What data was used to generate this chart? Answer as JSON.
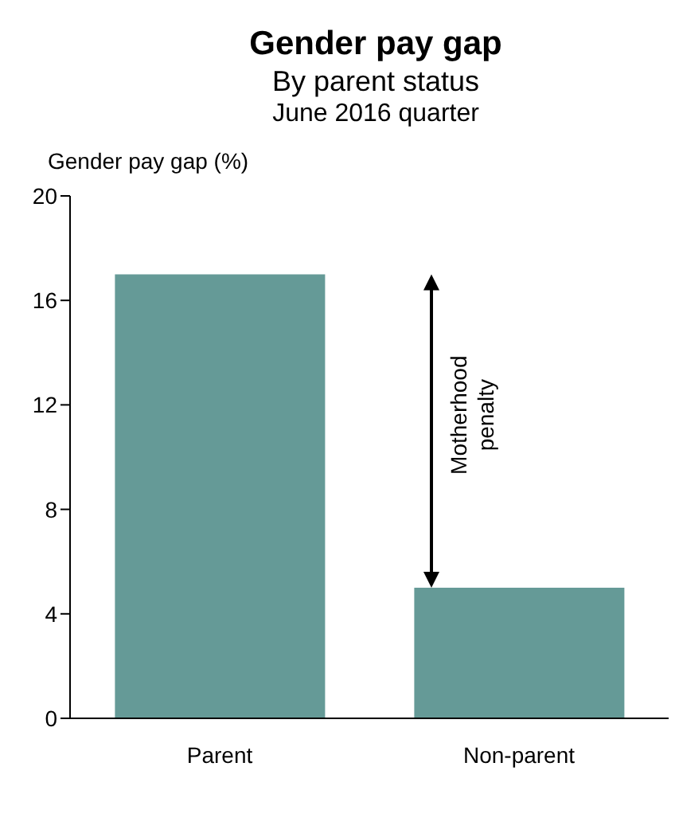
{
  "chart_data": {
    "type": "bar",
    "title": "Gender pay gap",
    "subtitle": "By parent status\nJune 2016 quarter",
    "ylabel": "Gender pay gap (%)",
    "categories": [
      "Parent",
      "Non-parent"
    ],
    "values": [
      17,
      5
    ],
    "color": "#659a97",
    "ylim": [
      0,
      20
    ],
    "yticks": [
      0,
      4,
      8,
      12,
      16,
      20
    ],
    "annotations": [
      "Motherhood penalty"
    ]
  }
}
